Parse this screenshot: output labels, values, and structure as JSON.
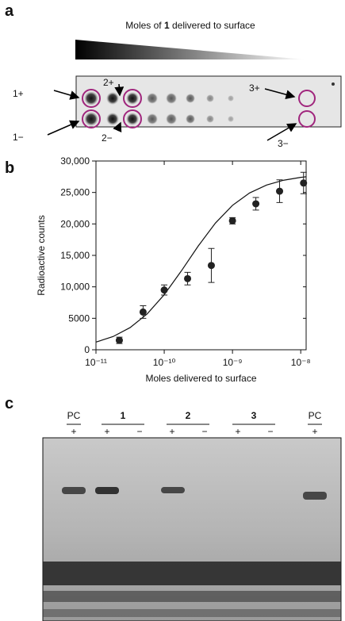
{
  "panel_a": {
    "label": "a",
    "title_parts": [
      "Moles of ",
      "1",
      " delivered to surface"
    ],
    "spot_labels": [
      "1+",
      "1−",
      "2+",
      "2−",
      "3+",
      "3−"
    ]
  },
  "chart_data": {
    "type": "scatter",
    "label": "b",
    "xlabel": "Moles delivered to surface",
    "ylabel": "Radioactive counts",
    "xscale": "log",
    "xlim": [
      1e-11,
      1.2e-08
    ],
    "xticks": [
      {
        "value": 1e-11,
        "label": "10⁻¹¹"
      },
      {
        "value": 1e-10,
        "label": "10⁻¹⁰"
      },
      {
        "value": 1e-09,
        "label": "10⁻⁹"
      },
      {
        "value": 1e-08,
        "label": "10⁻⁸"
      }
    ],
    "ylim": [
      0,
      30000
    ],
    "yticks": [
      0,
      5000,
      {
        "value": 10000,
        "label": "10,000"
      },
      {
        "value": 15000,
        "label": "15,000"
      },
      {
        "value": 20000,
        "label": "20,000"
      },
      {
        "value": 25000,
        "label": "25,000"
      },
      {
        "value": 30000,
        "label": "30,000"
      }
    ],
    "color": "#222222",
    "x": [
      2.2e-11,
      4.9e-11,
      1e-10,
      2.2e-10,
      4.9e-10,
      1e-09,
      2.2e-09,
      4.9e-09,
      1.1e-08
    ],
    "values": [
      1500,
      6000,
      9500,
      11300,
      13400,
      20500,
      23200,
      25200,
      26500
    ],
    "errors": [
      500,
      1000,
      800,
      1000,
      2700,
      500,
      1000,
      1800,
      1700
    ],
    "fit": {
      "x": [
        1e-11,
        1.78e-11,
        3.16e-11,
        5.62e-11,
        1e-10,
        1.78e-10,
        3.16e-10,
        5.62e-10,
        1e-09,
        1.78e-09,
        3.16e-09,
        5.62e-09,
        1e-08,
        1.2e-08
      ],
      "values": [
        1217,
        2096,
        3518,
        5697,
        8750,
        12522,
        16509,
        20129,
        22951,
        24920,
        26178,
        26946,
        27397,
        27496
      ]
    }
  },
  "panel_c": {
    "label": "c",
    "lane_groups": [
      "PC",
      "1",
      "2",
      "3",
      "PC"
    ],
    "signs": [
      "+",
      "+",
      "−",
      "+",
      "−",
      "+",
      "−",
      "+"
    ]
  }
}
